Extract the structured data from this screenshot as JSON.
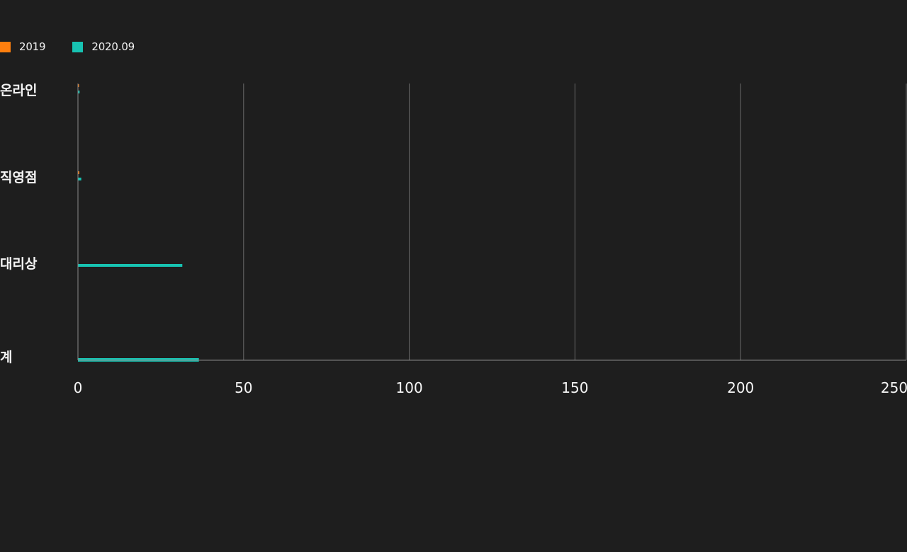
{
  "legend": {
    "items": [
      {
        "label": "2019",
        "color": "#ff7f0e"
      },
      {
        "label": "2020.09",
        "color": "#17c3b2"
      }
    ]
  },
  "chart_data": {
    "type": "bar",
    "orientation": "horizontal",
    "categories": [
      "온라인",
      "직영점",
      "대리상",
      "계"
    ],
    "series": [
      {
        "name": "2019",
        "color": "#ff7f0e",
        "values": [
          0.3,
          0.4,
          0,
          0
        ]
      },
      {
        "name": "2020.09",
        "color": "#17c3b2",
        "values": [
          0.5,
          1,
          31.5,
          36.5
        ]
      }
    ],
    "xlim": [
      0,
      250
    ],
    "xticks": [
      "0",
      "50",
      "100",
      "150",
      "200",
      "250"
    ],
    "grid": true,
    "legend_position": "top-left",
    "title": "",
    "xlabel": "",
    "ylabel": ""
  }
}
